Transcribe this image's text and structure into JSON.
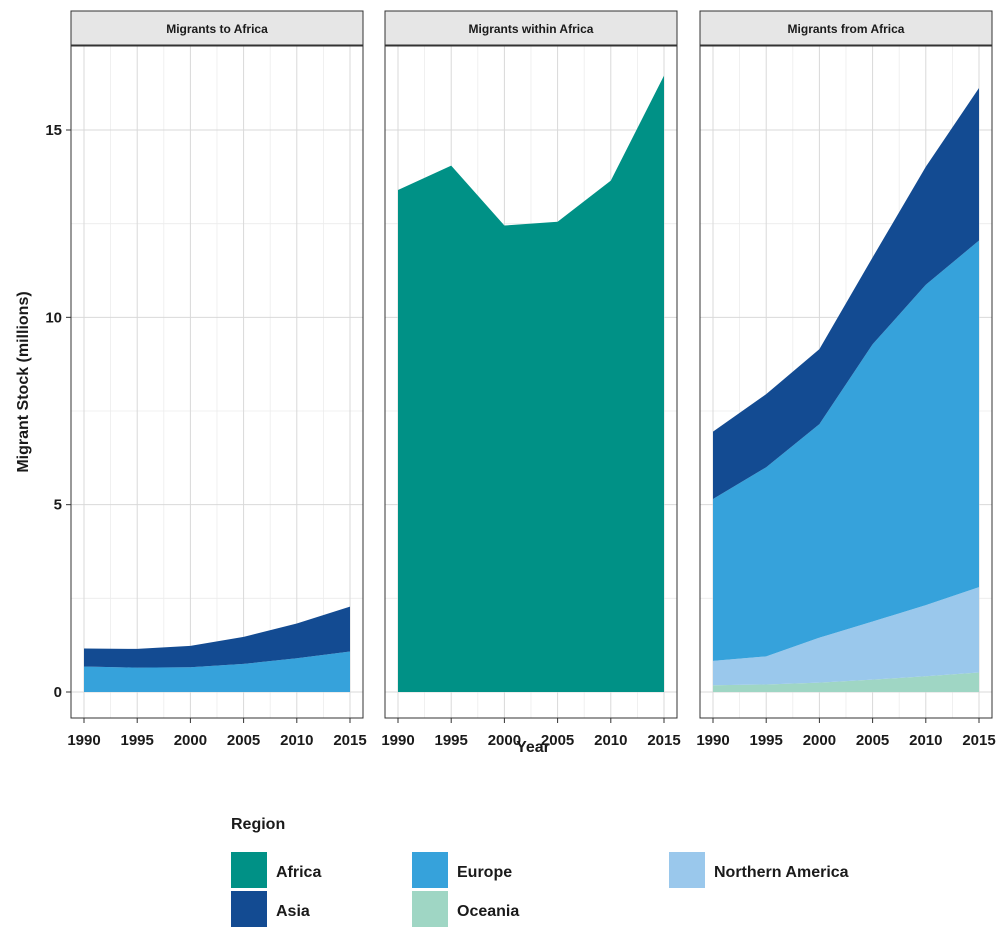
{
  "chart_data": {
    "type": "area",
    "stacked": true,
    "ylabel": "Migrant Stock (millions)",
    "xlabel": "Year",
    "ylim": [
      0,
      17
    ],
    "y_ticks": [
      0,
      5,
      10,
      15
    ],
    "x_ticks": [
      1990,
      1995,
      2000,
      2005,
      2010,
      2015
    ],
    "grid": true,
    "legend": {
      "title": "Region",
      "position": "bottom",
      "entries": [
        {
          "name": "Africa",
          "color": "#009186"
        },
        {
          "name": "Asia",
          "color": "#134b92"
        },
        {
          "name": "Europe",
          "color": "#36a2db"
        },
        {
          "name": "Oceania",
          "color": "#9fd6c4"
        },
        {
          "name": "Northern America",
          "color": "#9ac8ec"
        }
      ]
    },
    "panels": [
      {
        "title": "Migrants to Africa",
        "x": [
          1990,
          1995,
          2000,
          2005,
          2010,
          2015
        ],
        "series": [
          {
            "name": "Europe",
            "values": [
              0.68,
              0.65,
              0.66,
              0.75,
              0.9,
              1.08
            ]
          },
          {
            "name": "Asia",
            "values": [
              0.48,
              0.5,
              0.57,
              0.72,
              0.93,
              1.2
            ]
          }
        ]
      },
      {
        "title": "Migrants within Africa",
        "x": [
          1990,
          1995,
          2000,
          2005,
          2010,
          2015
        ],
        "series": [
          {
            "name": "Africa",
            "values": [
              13.4,
              14.05,
              12.45,
              12.55,
              13.65,
              16.45
            ]
          }
        ]
      },
      {
        "title": "Migrants from Africa",
        "x": [
          1990,
          1995,
          2000,
          2005,
          2010,
          2015
        ],
        "series": [
          {
            "name": "Oceania",
            "values": [
              0.18,
              0.2,
              0.25,
              0.33,
              0.42,
              0.52
            ]
          },
          {
            "name": "Northern America",
            "values": [
              0.65,
              0.75,
              1.2,
              1.55,
              1.9,
              2.28
            ]
          },
          {
            "name": "Europe",
            "values": [
              4.32,
              5.05,
              5.7,
              7.4,
              8.55,
              9.25
            ]
          },
          {
            "name": "Asia",
            "values": [
              1.8,
              1.95,
              2.0,
              2.32,
              3.15,
              4.07
            ]
          }
        ]
      }
    ]
  }
}
